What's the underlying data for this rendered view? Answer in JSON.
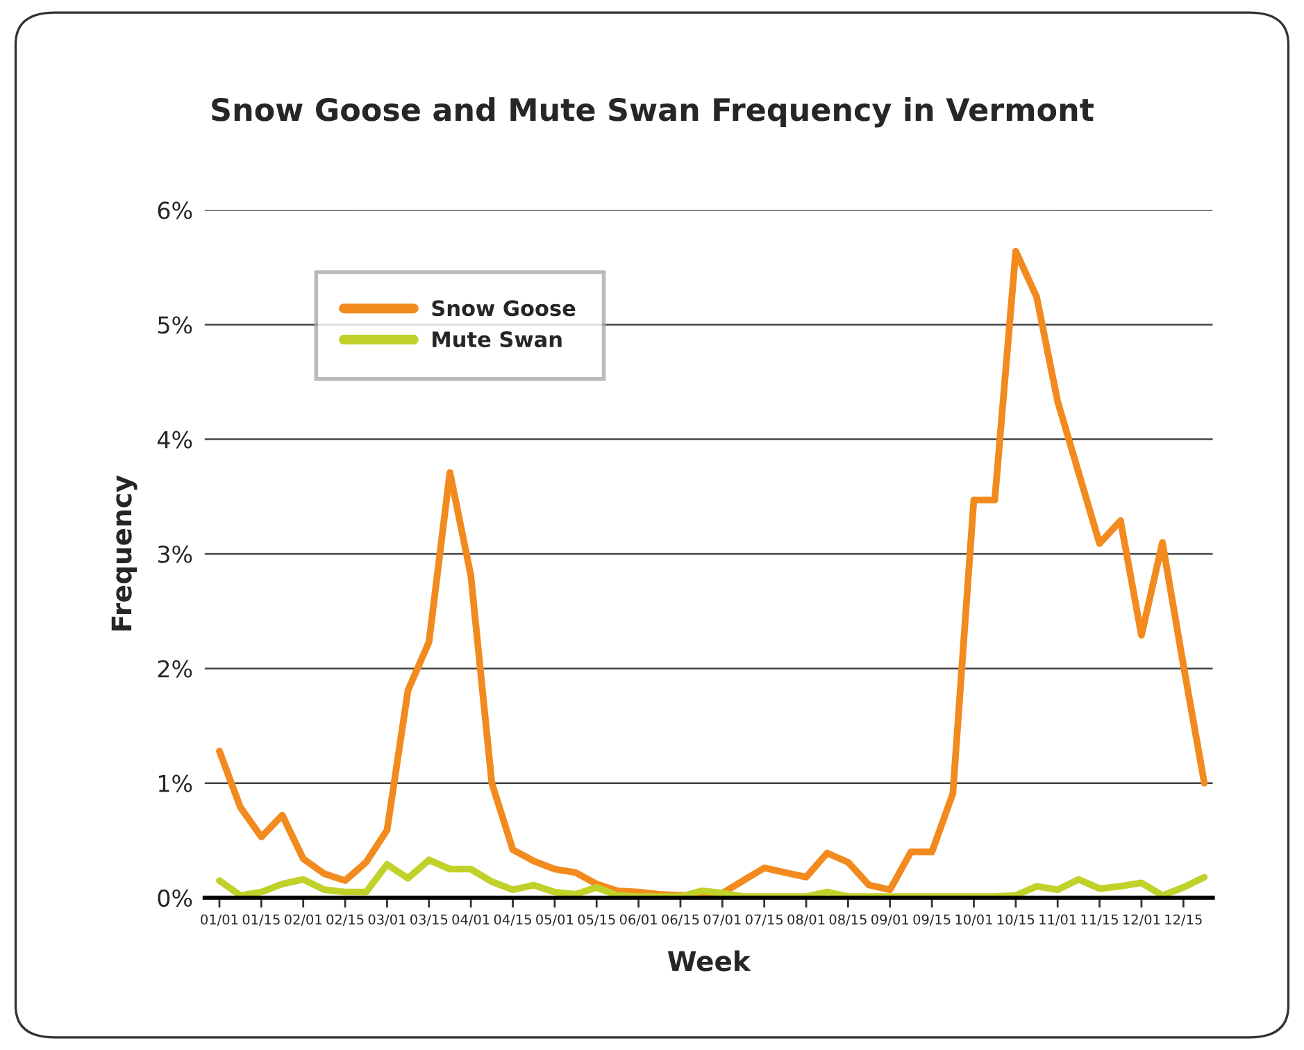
{
  "chart_data": {
    "type": "line",
    "title": "Snow Goose and Mute Swan Frequency in Vermont",
    "xlabel": "Week",
    "ylabel": "Frequency",
    "categories": [
      "01/01",
      null,
      "01/15",
      null,
      "02/01",
      null,
      "02/15",
      null,
      "03/01",
      null,
      "03/15",
      null,
      "04/01",
      null,
      "04/15",
      null,
      "05/01",
      null,
      "05/15",
      null,
      "06/01",
      null,
      "06/15",
      null,
      "07/01",
      null,
      "07/15",
      null,
      "08/01",
      null,
      "08/15",
      null,
      "09/01",
      null,
      "09/15",
      null,
      "10/01",
      null,
      "10/15",
      null,
      "11/01",
      null,
      "11/15",
      null,
      "12/01",
      null,
      "12/15",
      null
    ],
    "series": [
      {
        "name": "Snow Goose",
        "color": "#f28a1e",
        "values": [
          1.28,
          0.79,
          0.53,
          0.72,
          0.34,
          0.21,
          0.15,
          0.31,
          0.59,
          1.81,
          2.23,
          3.71,
          2.81,
          1.0,
          0.42,
          0.32,
          0.25,
          0.22,
          0.12,
          0.06,
          0.05,
          0.03,
          0.02,
          0.03,
          0.04,
          0.15,
          0.26,
          0.22,
          0.18,
          0.39,
          0.31,
          0.11,
          0.07,
          0.4,
          0.4,
          0.91,
          3.47,
          3.47,
          5.64,
          5.24,
          4.33,
          3.71,
          3.09,
          3.29,
          2.29,
          3.1,
          2.03,
          1.0
        ]
      },
      {
        "name": "Mute Swan",
        "color": "#c0d12a",
        "values": [
          0.15,
          0.02,
          0.05,
          0.12,
          0.16,
          0.07,
          0.05,
          0.05,
          0.29,
          0.17,
          0.33,
          0.25,
          0.25,
          0.14,
          0.07,
          0.11,
          0.05,
          0.03,
          0.09,
          0.02,
          0.01,
          0.01,
          0.01,
          0.06,
          0.04,
          0.01,
          0.01,
          0.01,
          0.01,
          0.05,
          0.01,
          0.01,
          0.01,
          0.01,
          0.01,
          0.01,
          0.01,
          0.01,
          0.02,
          0.1,
          0.07,
          0.16,
          0.08,
          0.1,
          0.13,
          0.02,
          0.09,
          0.18
        ]
      }
    ],
    "ylim": [
      0,
      6
    ],
    "yticks": [
      {
        "value": 0,
        "label": "0%"
      },
      {
        "value": 1,
        "label": "1%"
      },
      {
        "value": 2,
        "label": "2%"
      },
      {
        "value": 3,
        "label": "3%"
      },
      {
        "value": 4,
        "label": "4%"
      },
      {
        "value": 5,
        "label": "5%"
      },
      {
        "value": 6,
        "label": "6%"
      }
    ],
    "grid": "y",
    "legend": "top left",
    "line_style": "solid",
    "marker": "none"
  }
}
